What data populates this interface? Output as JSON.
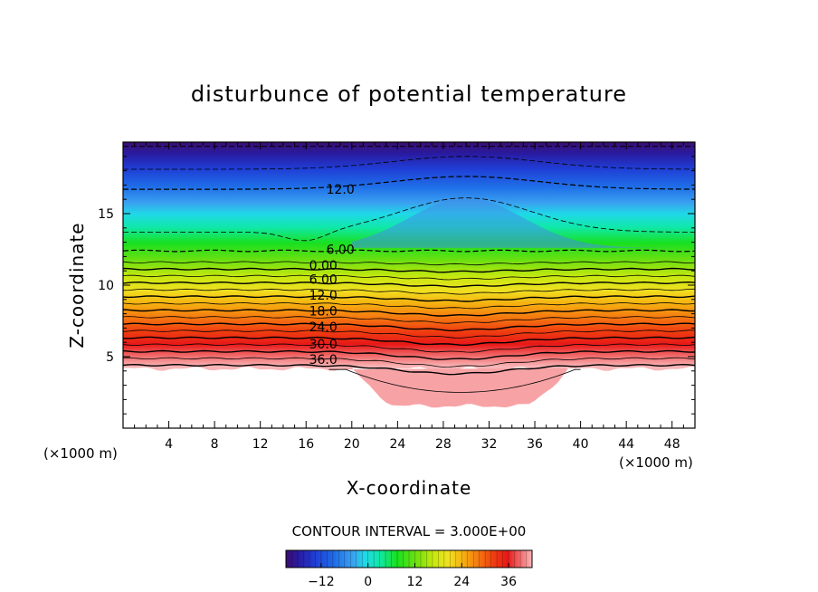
{
  "chart_data": {
    "type": "contour",
    "title": "disturbunce of potential temperature",
    "xlabel": "X-coordinate",
    "ylabel": "Z-coordinate",
    "x_unit_label": "(×1000 m)",
    "y_unit_label": "(×1000 m)",
    "xlim": [
      0,
      50
    ],
    "ylim": [
      0,
      20
    ],
    "x_ticks": [
      4,
      8,
      12,
      16,
      20,
      24,
      28,
      32,
      36,
      40,
      44,
      48
    ],
    "y_ticks": [
      5,
      10,
      15
    ],
    "contour_interval_text": "CONTOUR INTERVAL = 3.000E+00",
    "contour_labels": [
      {
        "text": "12.0",
        "x": 19,
        "z": 16.7
      },
      {
        "text": "6.00",
        "x": 19,
        "z": 12.5
      },
      {
        "text": "0.00",
        "x": 17.5,
        "z": 11.4
      },
      {
        "text": "6.00",
        "x": 17.5,
        "z": 10.4
      },
      {
        "text": "12.0",
        "x": 17.5,
        "z": 9.3
      },
      {
        "text": "18.0",
        "x": 17.5,
        "z": 8.2
      },
      {
        "text": "24.0",
        "x": 17.5,
        "z": 7.1
      },
      {
        "text": "30.0",
        "x": 17.5,
        "z": 5.9
      },
      {
        "text": "36.0",
        "x": 17.5,
        "z": 4.8
      }
    ],
    "colorbar": {
      "min": -21,
      "max": 42,
      "ticks": [
        -12,
        0,
        12,
        24,
        36
      ]
    }
  }
}
